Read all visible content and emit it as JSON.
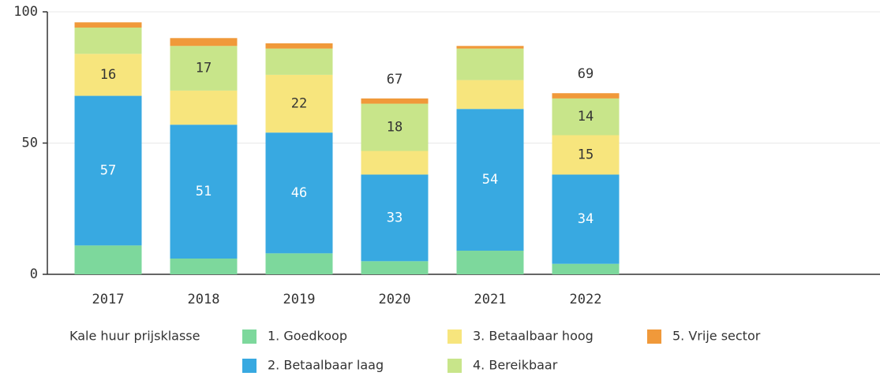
{
  "chart_data": {
    "type": "stacked_bar",
    "categories": [
      "2017",
      "2018",
      "2019",
      "2020",
      "2021",
      "2022"
    ],
    "legend_title": "Kale huur prijsklasse",
    "series": [
      {
        "name": "1. Goedkoop",
        "color": "#7dd89c",
        "values": [
          11,
          6,
          8,
          5,
          9,
          4
        ]
      },
      {
        "name": "2. Betaalbaar laag",
        "color": "#38a9e1",
        "values": [
          57,
          51,
          46,
          33,
          54,
          34
        ],
        "value_labels": [
          57,
          51,
          46,
          33,
          54,
          34
        ]
      },
      {
        "name": "3. Betaalbaar hoog",
        "color": "#f7e57d",
        "values": [
          16,
          13,
          22,
          9,
          11,
          15
        ],
        "value_labels": [
          16,
          null,
          22,
          null,
          null,
          15
        ]
      },
      {
        "name": "4. Bereikbaar",
        "color": "#c8e58a",
        "values": [
          10,
          17,
          10,
          18,
          12,
          14
        ],
        "value_labels": [
          null,
          17,
          null,
          18,
          null,
          14
        ]
      },
      {
        "name": "5. Vrije sector",
        "color": "#f0993a",
        "values": [
          2,
          3,
          2,
          2,
          1,
          2
        ]
      }
    ],
    "total_labels": [
      null,
      null,
      null,
      67,
      null,
      69
    ],
    "ylim": [
      0,
      100
    ],
    "yticks": [
      0,
      50,
      100
    ],
    "grid": true
  }
}
